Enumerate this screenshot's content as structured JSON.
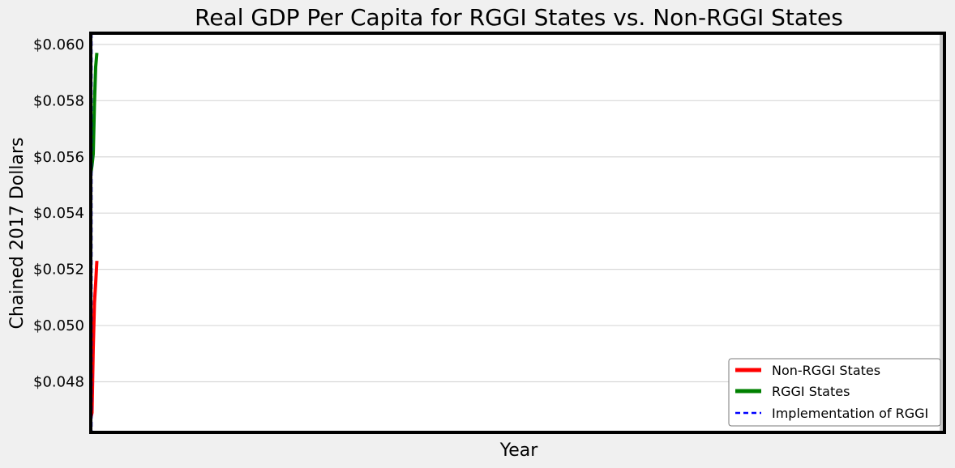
{
  "chart_data": {
    "type": "line",
    "title": "Real GDP Per Capita for RGGI States vs. Non-RGGI States",
    "xlabel": "Year",
    "ylabel": "Chained 2017 Dollars",
    "ylim": [
      0.0462,
      0.0604
    ],
    "yticks": [
      0.048,
      0.05,
      0.052,
      0.054,
      0.056,
      0.058,
      0.06
    ],
    "ytick_labels": [
      "$0.048",
      "$0.050",
      "$0.052",
      "$0.054",
      "$0.056",
      "$0.058",
      "$0.060"
    ],
    "grid": "horizontal",
    "legend_position": "lower-right",
    "series": [
      {
        "name": "Non-RGGI States",
        "color": "#ff0000",
        "style": "solid",
        "points": [
          [
            0.0,
            0.0467
          ],
          [
            0.15,
            0.0469
          ],
          [
            0.3,
            0.0492
          ],
          [
            0.45,
            0.0508
          ],
          [
            0.6,
            0.0515
          ],
          [
            0.75,
            0.0523
          ]
        ]
      },
      {
        "name": "RGGI States",
        "color": "#008000",
        "style": "solid",
        "points": [
          [
            0.0,
            0.0554
          ],
          [
            0.15,
            0.0557
          ],
          [
            0.3,
            0.0561
          ],
          [
            0.45,
            0.0579
          ],
          [
            0.6,
            0.0592
          ],
          [
            0.75,
            0.0597
          ]
        ]
      },
      {
        "name": "Implementation of RGGI",
        "color": "#0000ff",
        "style": "dashed",
        "vertical_line_at": 0.1
      }
    ]
  }
}
